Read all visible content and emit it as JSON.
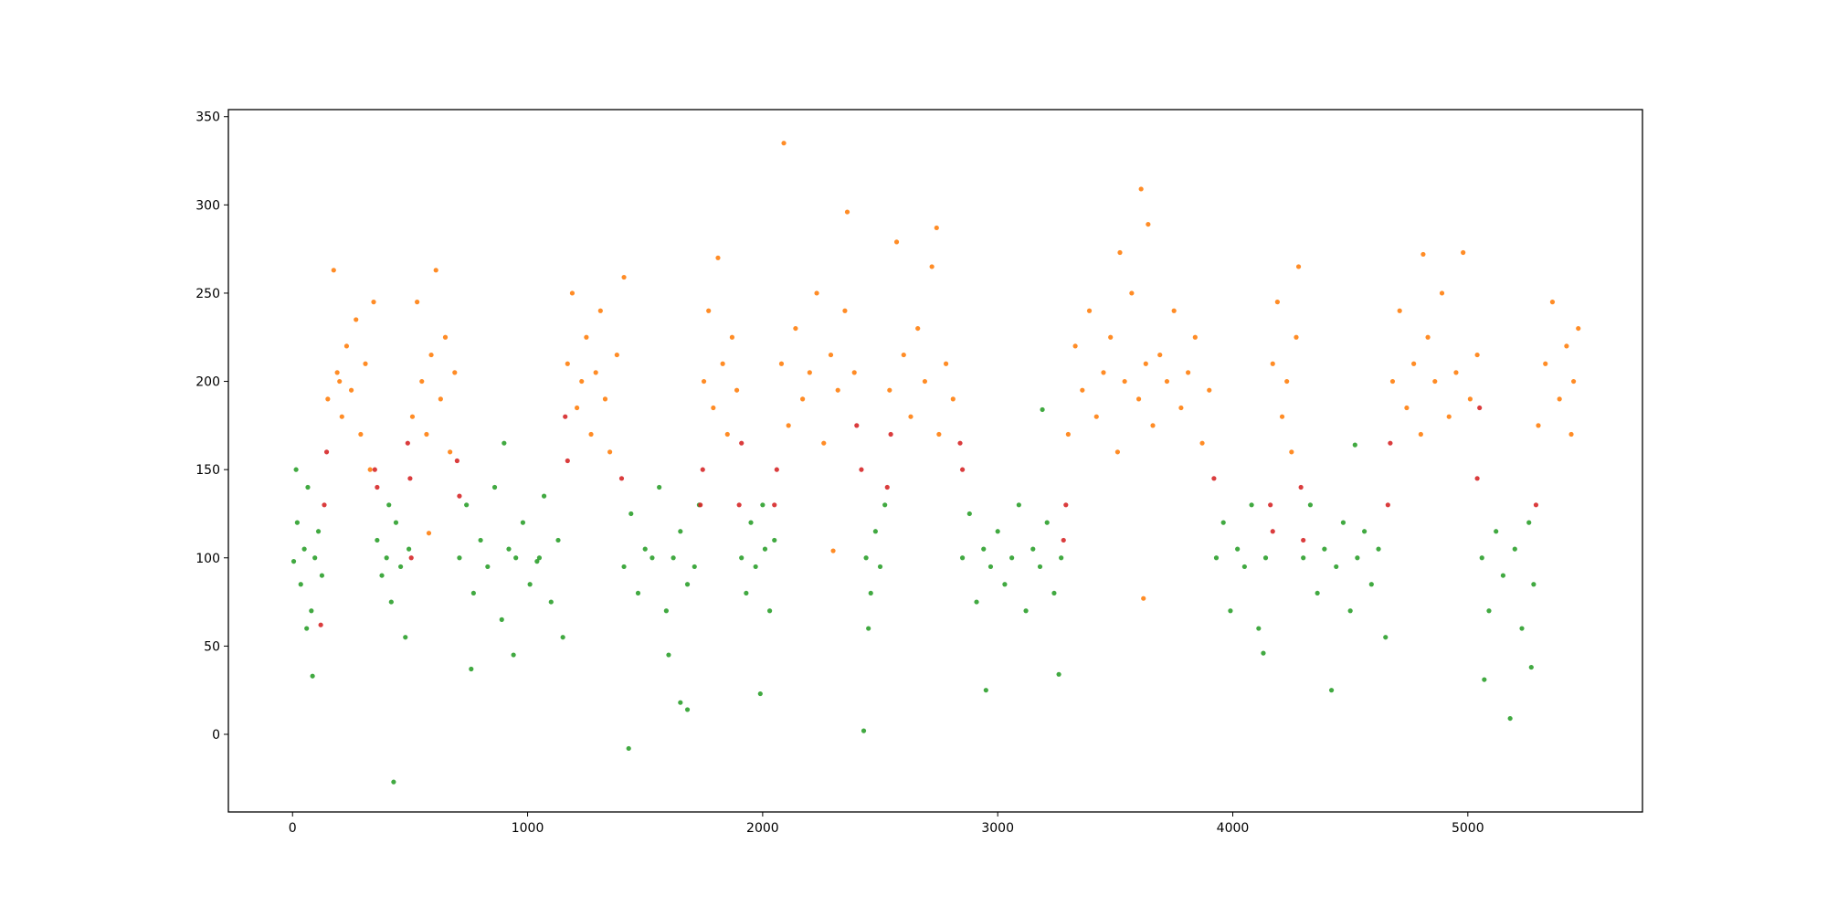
{
  "chart_data": {
    "type": "scatter",
    "xlim": [
      -273,
      5743
    ],
    "ylim": [
      -44,
      354
    ],
    "xticks": [
      0,
      1000,
      2000,
      3000,
      4000,
      5000
    ],
    "yticks": [
      0,
      50,
      100,
      150,
      200,
      250,
      300,
      350
    ],
    "grid": false,
    "series": [
      {
        "color": "#2ca02c",
        "x": [
          5,
          20,
          35,
          50,
          65,
          80,
          95,
          110,
          125,
          85,
          15,
          60,
          360,
          380,
          400,
          420,
          440,
          460,
          480,
          495,
          430,
          410,
          710,
          740,
          770,
          800,
          830,
          860,
          890,
          920,
          950,
          980,
          1010,
          1040,
          1070,
          1100,
          1130,
          1150,
          760,
          940,
          900,
          1050,
          1410,
          1440,
          1470,
          1500,
          1530,
          1560,
          1590,
          1620,
          1650,
          1680,
          1710,
          1730,
          1430,
          1650,
          1680,
          1600,
          1910,
          1930,
          1950,
          1970,
          1990,
          2010,
          2030,
          2050,
          2000,
          2430,
          2440,
          2460,
          2480,
          2500,
          2520,
          2450,
          2850,
          2880,
          2910,
          2940,
          2950,
          2970,
          3000,
          3030,
          3060,
          3090,
          3120,
          3150,
          3180,
          3210,
          3240,
          3270,
          3190,
          3260,
          3930,
          3960,
          3990,
          4020,
          4050,
          4080,
          4110,
          4140,
          4130,
          4300,
          4330,
          4360,
          4390,
          4420,
          4440,
          4470,
          4500,
          4530,
          4560,
          4590,
          4620,
          4650,
          4520,
          5060,
          5090,
          5120,
          5150,
          5180,
          5200,
          5230,
          5260,
          5280,
          5070,
          5270
        ],
        "values": [
          98,
          120,
          85,
          105,
          140,
          70,
          100,
          115,
          90,
          33,
          150,
          60,
          110,
          90,
          100,
          75,
          120,
          95,
          55,
          105,
          -27,
          130,
          100,
          130,
          80,
          110,
          95,
          140,
          65,
          105,
          100,
          120,
          85,
          98,
          135,
          75,
          110,
          55,
          37,
          45,
          165,
          100,
          95,
          125,
          80,
          105,
          100,
          140,
          70,
          100,
          115,
          85,
          95,
          130,
          -8,
          18,
          14,
          45,
          100,
          80,
          120,
          95,
          23,
          105,
          70,
          110,
          130,
          2,
          100,
          80,
          115,
          95,
          130,
          60,
          100,
          125,
          75,
          105,
          25,
          95,
          115,
          85,
          100,
          130,
          70,
          105,
          95,
          120,
          80,
          100,
          184,
          34,
          100,
          120,
          70,
          105,
          95,
          130,
          60,
          100,
          46,
          100,
          130,
          80,
          105,
          25,
          95,
          120,
          70,
          100,
          115,
          85,
          105,
          55,
          164,
          100,
          70,
          115,
          90,
          9,
          105,
          60,
          120,
          85,
          31,
          38
        ]
      },
      {
        "color": "#ff7f0e",
        "x": [
          150,
          175,
          190,
          210,
          230,
          250,
          270,
          290,
          310,
          330,
          345,
          200,
          510,
          530,
          550,
          570,
          590,
          610,
          630,
          650,
          670,
          690,
          580,
          1170,
          1190,
          1210,
          1230,
          1250,
          1270,
          1290,
          1310,
          1330,
          1350,
          1380,
          1410,
          1750,
          1770,
          1790,
          1810,
          1830,
          1850,
          1870,
          1890,
          2080,
          2090,
          2110,
          2140,
          2170,
          2200,
          2230,
          2260,
          2290,
          2320,
          2350,
          2360,
          2390,
          2300,
          2540,
          2570,
          2600,
          2630,
          2660,
          2690,
          2720,
          2750,
          2780,
          2810,
          2740,
          3300,
          3330,
          3360,
          3390,
          3420,
          3450,
          3480,
          3510,
          3540,
          3570,
          3600,
          3610,
          3630,
          3640,
          3660,
          3690,
          3720,
          3750,
          3780,
          3810,
          3840,
          3870,
          3900,
          3620,
          3520,
          4170,
          4190,
          4210,
          4230,
          4250,
          4270,
          4280,
          4680,
          4710,
          4740,
          4770,
          4800,
          4830,
          4860,
          4890,
          4920,
          4950,
          4980,
          5010,
          5040,
          4810,
          5300,
          5330,
          5360,
          5390,
          5420,
          5450,
          5470,
          5440
        ],
        "values": [
          190,
          263,
          205,
          180,
          220,
          195,
          235,
          170,
          210,
          150,
          245,
          200,
          180,
          245,
          200,
          170,
          215,
          263,
          190,
          225,
          160,
          205,
          114,
          210,
          250,
          185,
          200,
          225,
          170,
          205,
          240,
          190,
          160,
          215,
          259,
          200,
          240,
          185,
          270,
          210,
          170,
          225,
          195,
          210,
          335,
          175,
          230,
          190,
          205,
          250,
          165,
          215,
          195,
          240,
          296,
          205,
          104,
          195,
          279,
          215,
          180,
          230,
          200,
          265,
          170,
          210,
          190,
          287,
          170,
          220,
          195,
          240,
          180,
          205,
          225,
          160,
          200,
          250,
          190,
          309,
          210,
          289,
          175,
          215,
          200,
          240,
          185,
          205,
          225,
          165,
          195,
          77,
          273,
          210,
          245,
          180,
          200,
          160,
          225,
          265,
          200,
          240,
          185,
          210,
          170,
          225,
          200,
          250,
          180,
          205,
          273,
          190,
          215,
          272,
          175,
          210,
          245,
          190,
          220,
          200,
          230,
          170
        ]
      },
      {
        "color": "#d62728",
        "x": [
          120,
          135,
          145,
          350,
          360,
          490,
          500,
          505,
          700,
          710,
          1160,
          1170,
          1400,
          1735,
          1745,
          1900,
          1910,
          2050,
          2060,
          2400,
          2420,
          2530,
          2545,
          2840,
          2850,
          3280,
          3290,
          3920,
          4160,
          4170,
          4290,
          4300,
          4660,
          4670,
          5040,
          5050,
          5290
        ],
        "values": [
          62,
          130,
          160,
          150,
          140,
          165,
          145,
          100,
          155,
          135,
          180,
          155,
          145,
          130,
          150,
          130,
          165,
          130,
          150,
          175,
          150,
          140,
          170,
          165,
          150,
          110,
          130,
          145,
          130,
          115,
          140,
          110,
          130,
          165,
          145,
          185,
          130
        ]
      }
    ]
  }
}
